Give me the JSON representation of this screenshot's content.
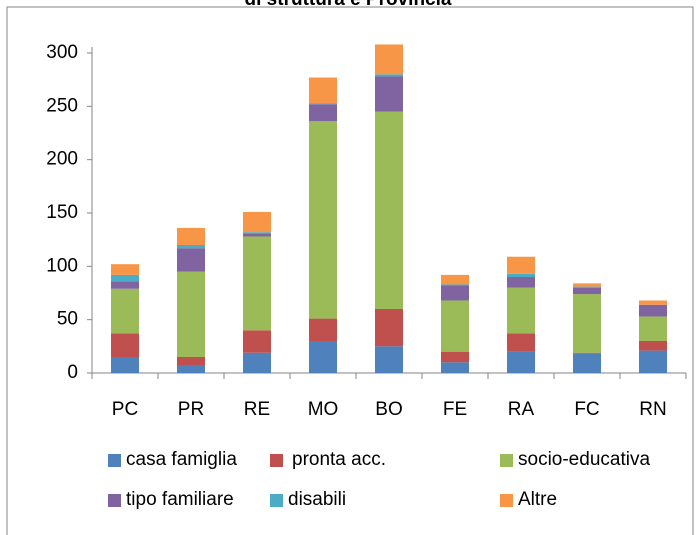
{
  "chart_data": {
    "type": "bar",
    "stacked": true,
    "title": "di struttura e Provincia",
    "categories": [
      "PC",
      "PR",
      "RE",
      "MO",
      "BO",
      "FE",
      "RA",
      "FC",
      "RN"
    ],
    "series": [
      {
        "name": "casa famiglia",
        "color": "#4f81bd",
        "values": [
          15,
          7,
          19,
          30,
          25,
          10,
          20,
          18,
          21
        ]
      },
      {
        "name": "pronta acc.",
        "color": "#c0504d",
        "values": [
          22,
          8,
          21,
          21,
          35,
          10,
          17,
          1,
          9
        ]
      },
      {
        "name": "socio-educativa",
        "color": "#9bbb59",
        "values": [
          42,
          80,
          88,
          185,
          185,
          48,
          43,
          55,
          23
        ]
      },
      {
        "name": "tipo familiare",
        "color": "#8064a2",
        "values": [
          7,
          22,
          3,
          16,
          33,
          14,
          10,
          6,
          11
        ]
      },
      {
        "name": "disabili",
        "color": "#4bacc6",
        "values": [
          6,
          3,
          1,
          1,
          2,
          1,
          3,
          1,
          0
        ]
      },
      {
        "name": "Altre",
        "color": "#f79646",
        "values": [
          10,
          16,
          19,
          24,
          28,
          9,
          16,
          3,
          4
        ]
      }
    ],
    "ylim": [
      0,
      300
    ],
    "yticks": [
      0,
      50,
      100,
      150,
      200,
      250,
      300
    ],
    "grid": false
  }
}
